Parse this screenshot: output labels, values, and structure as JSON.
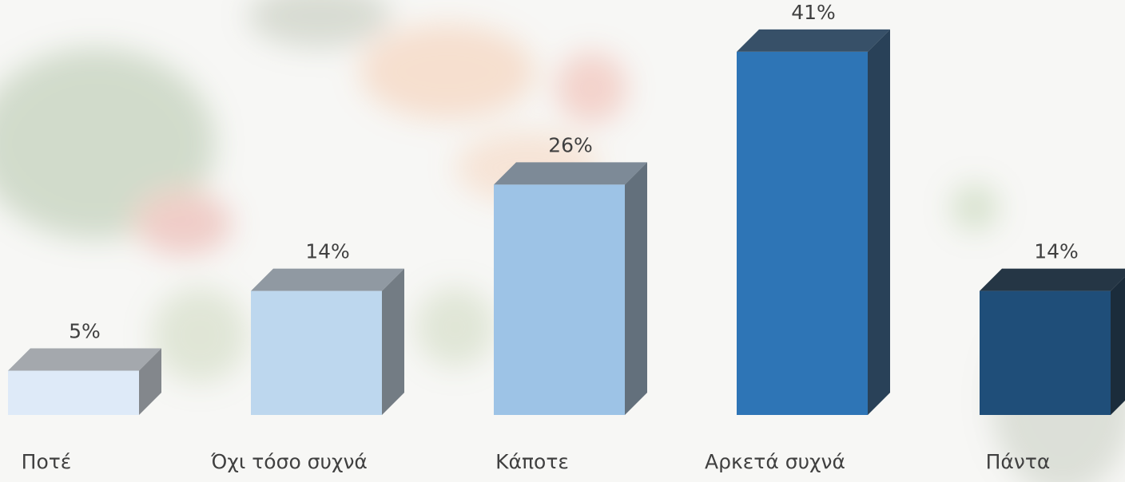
{
  "chart_data": {
    "type": "bar3d",
    "categories": [
      "Ποτέ",
      "Όχι τόσο συχνά",
      "Κάποτε",
      "Αρκετά συχνά",
      "Πάντα"
    ],
    "values": [
      5,
      14,
      26,
      41,
      14
    ],
    "value_labels": [
      "5%",
      "14%",
      "26%",
      "41%",
      "14%"
    ],
    "colors": [
      "#deeaf8",
      "#bdd7ee",
      "#9dc3e6",
      "#2e75b6",
      "#1f4e79"
    ]
  }
}
